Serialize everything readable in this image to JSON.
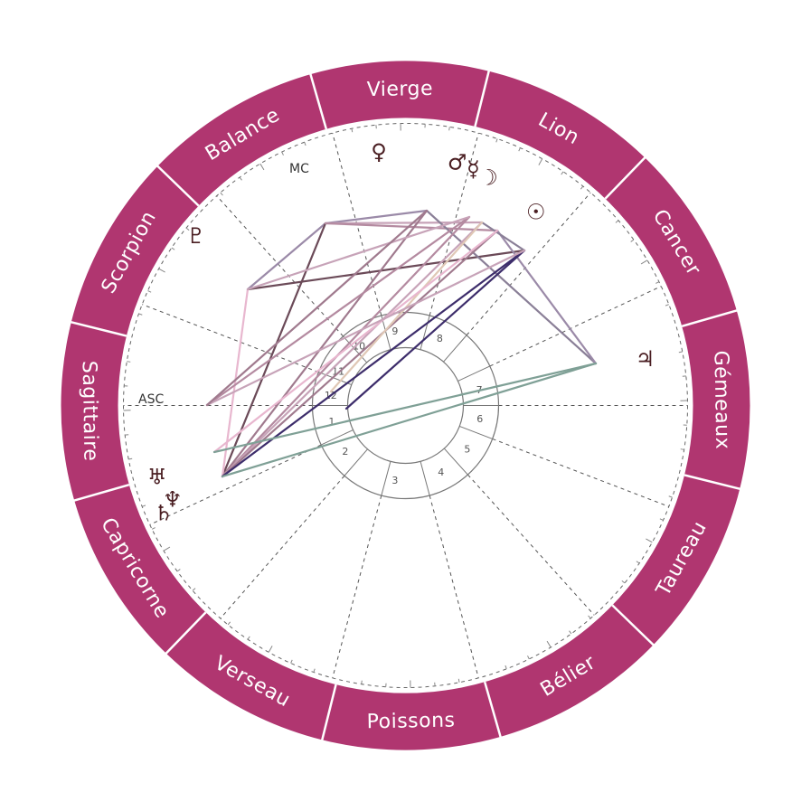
{
  "colors": {
    "ring": "#b03670",
    "planet": "#4a1e22",
    "guides": "#555555",
    "house_ring": "#777777"
  },
  "signs": [
    {
      "name": "Vierge",
      "mid_angle": 91
    },
    {
      "name": "Lion",
      "mid_angle": 61
    },
    {
      "name": "Cancer",
      "mid_angle": 31
    },
    {
      "name": "Gémeaux",
      "mid_angle": 1
    },
    {
      "name": "Taureau",
      "mid_angle": -29
    },
    {
      "name": "Bélier",
      "mid_angle": -59
    },
    {
      "name": "Poissons",
      "mid_angle": -89
    },
    {
      "name": "Verseau",
      "mid_angle": -119
    },
    {
      "name": "Capricorne",
      "mid_angle": -149
    },
    {
      "name": "Sagittaire",
      "mid_angle": 181
    },
    {
      "name": "Scorpion",
      "mid_angle": 151
    },
    {
      "name": "Balance",
      "mid_angle": 121
    }
  ],
  "sign_boundaries": [
    106,
    76,
    46,
    16,
    -14,
    -44,
    -74,
    -104,
    -134,
    -164,
    166,
    136
  ],
  "house_cusps": [
    180,
    205,
    229,
    255,
    285,
    312,
    339,
    0,
    25,
    49,
    75,
    105,
    132,
    159
  ],
  "houses": [
    {
      "label": "1",
      "angle": 192
    },
    {
      "label": "2",
      "angle": 217
    },
    {
      "label": "3",
      "angle": 262
    },
    {
      "label": "4",
      "angle": 298
    },
    {
      "label": "5",
      "angle": 325
    },
    {
      "label": "6",
      "angle": 350
    },
    {
      "label": "7",
      "angle": 12
    },
    {
      "label": "8",
      "angle": 63
    },
    {
      "label": "9",
      "angle": 98
    },
    {
      "label": "10",
      "angle": 128
    },
    {
      "label": "11",
      "angle": 153
    },
    {
      "label": "12",
      "angle": 172
    }
  ],
  "axes": {
    "asc": "ASC",
    "mc": "MC"
  },
  "planets": [
    {
      "name": "venus",
      "glyph": "♀",
      "angle": 96,
      "r": 282
    },
    {
      "name": "mars",
      "glyph": "♂",
      "angle": 78,
      "r": 275
    },
    {
      "name": "mercury",
      "glyph": "☿",
      "angle": 74,
      "r": 272
    },
    {
      "name": "moon",
      "glyph": "☽",
      "angle": 70,
      "r": 268
    },
    {
      "name": "sun",
      "glyph": "☉",
      "angle": 56,
      "r": 258
    },
    {
      "name": "jupiter",
      "glyph": "♃",
      "angle": 11,
      "r": 270
    },
    {
      "name": "uranus",
      "glyph": "♅",
      "angle": 196,
      "r": 286
    },
    {
      "name": "saturn",
      "glyph": "♄",
      "angle": 204,
      "r": 293
    },
    {
      "name": "neptune",
      "glyph": "♆",
      "angle": 202,
      "r": 278
    },
    {
      "name": "pluto",
      "glyph": "♇",
      "angle": 141,
      "r": 298
    }
  ],
  "aspect_points": {
    "p1": [
      360,
      247
    ],
    "p2": [
      472,
      233
    ],
    "p3": [
      519,
      240
    ],
    "p4": [
      533,
      246
    ],
    "p5": [
      550,
      255
    ],
    "p6": [
      580,
      277
    ],
    "p7": [
      659,
      402
    ],
    "p8": [
      274,
      320
    ],
    "p9": [
      246,
      527
    ],
    "p10": [
      237,
      500
    ],
    "p11": [
      229,
      448
    ],
    "p12": [
      366,
      433
    ],
    "p13": [
      383,
      452
    ]
  },
  "aspects": [
    {
      "from": "p1",
      "to": "p2",
      "color": "#9b8aa8"
    },
    {
      "from": "p1",
      "to": "p8",
      "color": "#9b8aa8"
    },
    {
      "from": "p1",
      "to": "p9",
      "color": "#6b4a58"
    },
    {
      "from": "p1",
      "to": "p4",
      "color": "#c7a3b8"
    },
    {
      "from": "p1",
      "to": "p5",
      "color": "#b48aa0"
    },
    {
      "from": "p8",
      "to": "p6",
      "color": "#6b4a58"
    },
    {
      "from": "p8",
      "to": "p9",
      "color": "#e8b7cf"
    },
    {
      "from": "p2",
      "to": "p7",
      "color": "#8a7f97"
    },
    {
      "from": "p5",
      "to": "p7",
      "color": "#9b8aa8"
    },
    {
      "from": "p4",
      "to": "p6",
      "color": "#8a7f97"
    },
    {
      "from": "p2",
      "to": "p9",
      "color": "#a07a8e"
    },
    {
      "from": "p3",
      "to": "p9",
      "color": "#b48aa0"
    },
    {
      "from": "p4",
      "to": "p9",
      "color": "#c7a3b8"
    },
    {
      "from": "p5",
      "to": "p9",
      "color": "#a07a8e"
    },
    {
      "from": "p6",
      "to": "p9",
      "color": "#3d2d6b"
    },
    {
      "from": "p6",
      "to": "p13",
      "color": "#3d2d6b"
    },
    {
      "from": "p3",
      "to": "p11",
      "color": "#b48aa0"
    },
    {
      "from": "p4",
      "to": "p12",
      "color": "#e0c8b6"
    },
    {
      "from": "p5",
      "to": "p10",
      "color": "#e8b7cf"
    },
    {
      "from": "p6",
      "to": "p11",
      "color": "#c7a3b8"
    },
    {
      "from": "p7",
      "to": "p9",
      "color": "#7fa096"
    },
    {
      "from": "p7",
      "to": "p10",
      "color": "#7fa096"
    },
    {
      "from": "p3",
      "to": "p8",
      "color": "#c7a3b8"
    },
    {
      "from": "p2",
      "to": "p11",
      "color": "#a07a8e"
    }
  ]
}
